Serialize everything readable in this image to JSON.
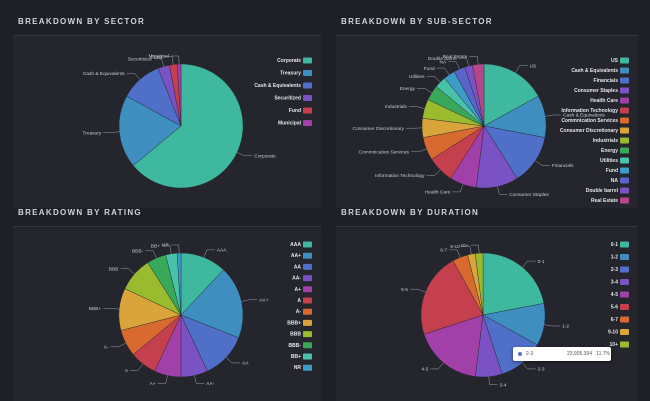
{
  "colors": {
    "teal": "#3fb8a0",
    "blue": "#3e8fc0",
    "slate": "#4f6fc9",
    "violet": "#7a52c4",
    "red": "#c5404f",
    "purple": "#a040a8",
    "orange": "#d86a30",
    "amber": "#d9a53a",
    "lime": "#9bbb2f",
    "green": "#3aa85a",
    "sky": "#3d9cc8",
    "mint": "#49c2a9",
    "magenta": "#b7458c"
  },
  "tooltip": {
    "name": "2-3",
    "value": "23,905,394",
    "percent": "11.7%",
    "color": "#4f6fc9"
  },
  "chart_data": [
    {
      "type": "pie",
      "title": "BREAKDOWN BY SECTOR",
      "legend_position": "right",
      "categories": [
        "Corporate",
        "Treasury",
        "Cash & Equivalents",
        "Securitized",
        "Fund",
        "Municipal"
      ],
      "values": [
        64,
        19,
        11,
        3,
        2,
        1
      ],
      "slice_colors": [
        "#3fb8a0",
        "#3e8fc0",
        "#4f6fc9",
        "#7a52c4",
        "#c5404f",
        "#a040a8"
      ]
    },
    {
      "type": "pie",
      "title": "BREAKDOWN BY SUB-SECTOR",
      "legend_position": "right",
      "categories": [
        "US",
        "Cash & Equivalents",
        "Financials",
        "Consumer Staples",
        "Health Care",
        "Information Technology",
        "Commnication Services",
        "Consumer Discretionary",
        "Industrials",
        "Energy",
        "Utilities",
        "Fund",
        "NA",
        "Double barrel",
        "Real Estate"
      ],
      "values": [
        17,
        11,
        13,
        11,
        7,
        7,
        6,
        5,
        5,
        4,
        3,
        3,
        3,
        2,
        3
      ],
      "slice_colors": [
        "#3fb8a0",
        "#3e8fc0",
        "#4f6fc9",
        "#7a52c4",
        "#a040a8",
        "#c5404f",
        "#d86a30",
        "#d9a53a",
        "#9bbb2f",
        "#3aa85a",
        "#49c2a9",
        "#3d9cc8",
        "#5a64c9",
        "#7a52c4",
        "#b7458c"
      ]
    },
    {
      "type": "pie",
      "title": "BREAKDOWN BY RATING",
      "legend_position": "right",
      "categories": [
        "AAA",
        "AA+",
        "AA",
        "AA-",
        "A+",
        "A",
        "A-",
        "BBB+",
        "BBB",
        "BBB-",
        "BB+",
        "NR"
      ],
      "values": [
        12,
        19,
        12,
        7,
        7,
        7,
        7,
        11,
        9,
        5,
        3,
        1
      ],
      "slice_colors": [
        "#3fb8a0",
        "#3e8fc0",
        "#4f6fc9",
        "#7a52c4",
        "#a040a8",
        "#c5404f",
        "#d86a30",
        "#d9a53a",
        "#9bbb2f",
        "#3aa85a",
        "#49c2a9",
        "#3d9cc8"
      ]
    },
    {
      "type": "pie",
      "title": "BREAKDOWN BY DURATION",
      "legend_position": "right",
      "categories": [
        "0-1",
        "1-2",
        "2-3",
        "3-4",
        "4-5",
        "5-6",
        "6-7",
        "9-10",
        "10+"
      ],
      "values": [
        22,
        11,
        12,
        7,
        18,
        22,
        4,
        2,
        2
      ],
      "slice_colors": [
        "#3fb8a0",
        "#3e8fc0",
        "#4f6fc9",
        "#7a52c4",
        "#a040a8",
        "#c5404f",
        "#d86a30",
        "#d9a53a",
        "#9bbb2f"
      ]
    }
  ]
}
